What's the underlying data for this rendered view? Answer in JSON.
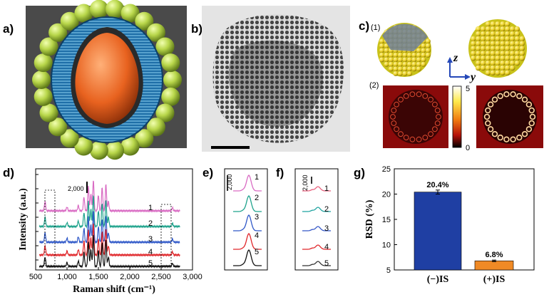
{
  "panels": {
    "a": "a)",
    "b": "b)",
    "c": "c)",
    "d": "d)",
    "e": "e)",
    "f": "f)",
    "g": "g)"
  },
  "panel_c": {
    "sub1": "(1)",
    "sub2": "(2)",
    "axis_z": "z",
    "axis_y": "y",
    "colorbar": {
      "max": "5",
      "min": "0"
    }
  },
  "panel_d": {
    "xlabel": "Raman shift (cm⁻¹)",
    "ylabel": "Intensity (a.u.)",
    "scale_label": "2,000",
    "xticks": [
      "500",
      "1,000",
      "1,500",
      "2,000",
      "2,500",
      "3,000"
    ],
    "series_labels": [
      "1",
      "2",
      "3",
      "4",
      "5"
    ],
    "colors": [
      "#d96bc3",
      "#1fa38c",
      "#2f58c8",
      "#e0262a",
      "#111111"
    ]
  },
  "panel_e": {
    "scale_label": "2,000",
    "labels": [
      "1",
      "2",
      "3",
      "4",
      "5"
    ]
  },
  "panel_f": {
    "scale_label": "2,000",
    "labels": [
      "1",
      "2",
      "3",
      "4",
      "5"
    ]
  },
  "chart_data": {
    "type": "bar",
    "categories": [
      "(−)IS",
      "(+)IS"
    ],
    "values": [
      20.4,
      6.8
    ],
    "errors": [
      0.4,
      0.15
    ],
    "data_labels": [
      "20.4%",
      "6.8%"
    ],
    "colors": [
      "#1f3fa3",
      "#f08a25"
    ],
    "xlabel": "",
    "ylabel": "RSD (%)",
    "ylim": [
      5,
      25
    ],
    "yticks": [
      "5",
      "10",
      "15",
      "20",
      "25"
    ]
  }
}
